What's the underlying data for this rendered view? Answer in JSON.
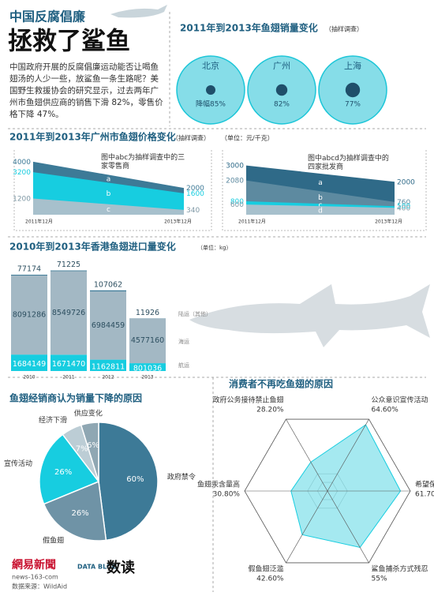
{
  "header": {
    "title_line1": "中国反腐倡廉",
    "title_line2": "拯救了鲨鱼",
    "intro": "中国政府开展的反腐倡廉运动能否让喝鱼翅汤的人少一些，放鲨鱼一条生路呢？美国野生救援协会的研究显示，过去两年广州市鱼翅供应商的销售下滑 82%，零售价格下降 47%。"
  },
  "chart_data": [
    {
      "type": "circles",
      "title": "2011年到2013年鱼翅销量变化",
      "subtitle": "（抽样调查）",
      "categories": [
        "北京",
        "广州",
        "上海"
      ],
      "values": [
        85,
        82,
        77
      ],
      "value_labels": [
        "降幅85%",
        "82%",
        "77%"
      ],
      "color": "#86dde8",
      "ylim": [
        0,
        100
      ]
    },
    {
      "type": "area",
      "title": "2011年到2013年广州市鱼翅价格变化",
      "subtitle": "（抽样调查）",
      "unit": "（单位：元/千克）",
      "note": "图中abc为抽样调查中的三家零售商",
      "categories": [
        "2011年12月",
        "2013年12月"
      ],
      "series": [
        {
          "name": "a",
          "color": "#3d7a97",
          "values": [
            4000,
            2000
          ]
        },
        {
          "name": "b",
          "color": "#17cde0",
          "values": [
            3200,
            1600
          ]
        },
        {
          "name": "c",
          "color": "#a7c0cc",
          "values": [
            1200,
            340
          ]
        }
      ],
      "ylim": [
        0,
        4200
      ]
    },
    {
      "type": "area",
      "note": "图中abcd为抽样调查中的四家批发商",
      "categories": [
        "2011年12月",
        "2013年12月"
      ],
      "series": [
        {
          "name": "a",
          "color": "#2f6a88",
          "values": [
            3000,
            2000
          ]
        },
        {
          "name": "b",
          "color": "#5d8aa0",
          "values": [
            2080,
            760
          ]
        },
        {
          "name": "c",
          "color": "#17cde0",
          "values": [
            800,
            500
          ]
        },
        {
          "name": "d",
          "color": "#a7c0cc",
          "values": [
            600,
            400
          ]
        }
      ],
      "ylim": [
        0,
        3200
      ]
    },
    {
      "type": "stacked_bar",
      "title": "2010年到2013年香港鱼翅进口量变化",
      "unit": "（单位：kg）",
      "categories": [
        "2010",
        "2011",
        "2012",
        "2013"
      ],
      "series": [
        {
          "name": "航运",
          "color": "#17cde0",
          "values": [
            1684149,
            1671470,
            1162811,
            801036
          ]
        },
        {
          "name": "海运",
          "color": "#a3b8c4",
          "values": [
            8091286,
            8549726,
            6984459,
            4577160
          ]
        },
        {
          "name": "陆运（其他）",
          "color": "#3d7a97",
          "values": [
            77174,
            71225,
            107062,
            11926
          ]
        }
      ],
      "ylim": [
        0,
        10500000
      ]
    },
    {
      "type": "pie",
      "title": "鱼翅经销商认为销量下降的原因",
      "categories": [
        "政府禁令",
        "假鱼翅",
        "宣传活动",
        "经济下滑",
        "供应变化"
      ],
      "values": [
        60,
        26,
        26,
        7,
        6
      ],
      "value_labels": [
        "60%",
        "26%",
        "26%",
        "7%",
        "6%"
      ],
      "colors": [
        "#3d7a97",
        "#6f93a6",
        "#17cde0",
        "#bccdd5",
        "#8fa7b3"
      ]
    },
    {
      "type": "radar",
      "title": "消费者不再吃鱼翅的原因",
      "categories": [
        "政府公务接待禁止鱼翅",
        "公众意识宣传活动",
        "希望保护鲨鱼",
        "鲨鱼捕杀方式残忍",
        "假鱼翅泛滥",
        "鱼翅汞含量高"
      ],
      "values": [
        28.2,
        64.6,
        61.7,
        55,
        42.6,
        30.8
      ],
      "value_labels": [
        "28.20%",
        "64.60%",
        "61.70%",
        "55%",
        "42.60%",
        "30.80%"
      ],
      "color": "#8fe3ec",
      "ylim": [
        0,
        70
      ]
    }
  ],
  "footer": {
    "logo": "網易新聞",
    "site": "news-163-com",
    "source": "数据来源：WildAid",
    "blog": "DATA BLOG",
    "blog_name": "数读"
  }
}
